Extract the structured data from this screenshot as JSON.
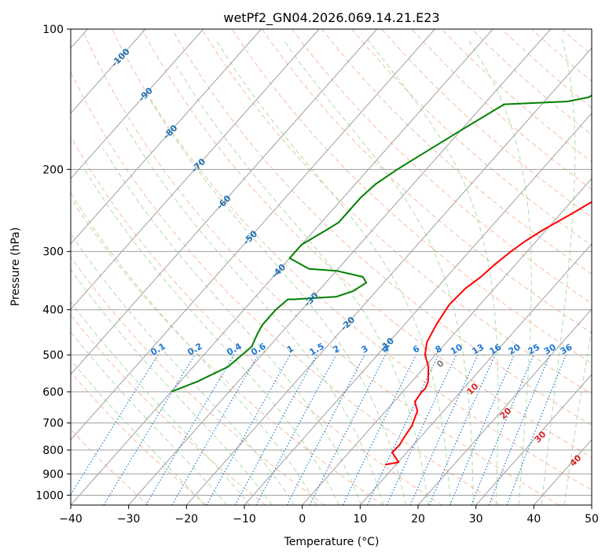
{
  "chart_data": {
    "type": "line",
    "title": "wetPf2_GN04.2026.069.14.21.E23",
    "xlabel": "Temperature (°C)",
    "ylabel": "Pressure (hPa)",
    "xlim": [
      -40,
      50
    ],
    "ylim": [
      1050,
      100
    ],
    "y_scale": "log",
    "x_ticks": [
      -40,
      -30,
      -20,
      -10,
      0,
      10,
      20,
      30,
      40,
      50
    ],
    "y_ticks": [
      100,
      200,
      300,
      400,
      500,
      600,
      700,
      800,
      900,
      1000
    ],
    "grid": true,
    "colors": {
      "temperature": "#ff0000",
      "dewpoint": "#008000",
      "isotherm_grid": "#a0a0a0",
      "dry_adiabat": "#f4a582",
      "moist_adiabat": "#a6d8a0",
      "mixing_ratio": "#1f77d4",
      "isotherm_label": "#1f6fb0",
      "moist_label": "#d62728",
      "zero_label": "#7f7f7f"
    },
    "series": [
      {
        "key": "temperature",
        "x": [
          8.1,
          10.1,
          7.5,
          7.6,
          7.2,
          6.8,
          5.5,
          3.6,
          3.3,
          3.4,
          2.8,
          0.6,
          -1.8,
          -3.4,
          -4.5,
          -5.3,
          -5.0,
          -4.1,
          -3.6,
          -2.8,
          -1.9,
          -0.6,
          1.8,
          4.8,
          7.6,
          10.6,
          13.6,
          14.6,
          16.5,
          18.2,
          18.8,
          19.0,
          19.1,
          19.8,
          20.5,
          22.1,
          25.2
        ],
        "y": [
          860,
          850,
          810,
          780,
          750,
          710,
          660,
          630,
          600,
          590,
          570,
          530,
          500,
          470,
          430,
          390,
          360,
          340,
          320,
          300,
          285,
          270,
          250,
          225,
          200,
          180,
          165,
          155,
          145,
          135,
          130,
          125,
          121,
          117,
          113,
          108,
          101
        ]
      },
      {
        "key": "dewpoint",
        "x": [
          -40.0,
          -37.0,
          -34.0,
          -33.0,
          -34.0,
          -34.5,
          -34.5,
          -34.0,
          -33.0,
          -26.0,
          -24.0,
          -23.0,
          -24.5,
          -30.0,
          -35.0,
          -40.0,
          -40.0,
          -38.0,
          -37.0,
          -37.0,
          -36.5,
          -35.0,
          -33.0,
          -30.0,
          -26.5,
          -16.0,
          -13.0,
          -11.5,
          -11.5,
          -13.0,
          -14.5,
          -16.5,
          -17.0
        ],
        "y": [
          600,
          570,
          530,
          480,
          450,
          430,
          400,
          380,
          380,
          375,
          365,
          350,
          340,
          330,
          327,
          310,
          290,
          270,
          260,
          230,
          215,
          200,
          185,
          165,
          145,
          143,
          140,
          133,
          125,
          117,
          113,
          103,
          100
        ]
      }
    ],
    "isotherm_labels": [
      "-100",
      "-90",
      "-80",
      "-70",
      "-60",
      "-50",
      "-40",
      "-30",
      "-20",
      "-10"
    ],
    "mixing_ratio_labels": [
      "0.1",
      "0.2",
      "0.4",
      "0.6",
      "1",
      "1.5",
      "2",
      "3",
      "4",
      "6",
      "8",
      "10",
      "13",
      "16",
      "20",
      "25",
      "30",
      "36"
    ],
    "moist_adiabat_labels": [
      "0",
      "10",
      "20",
      "30",
      "40"
    ]
  }
}
